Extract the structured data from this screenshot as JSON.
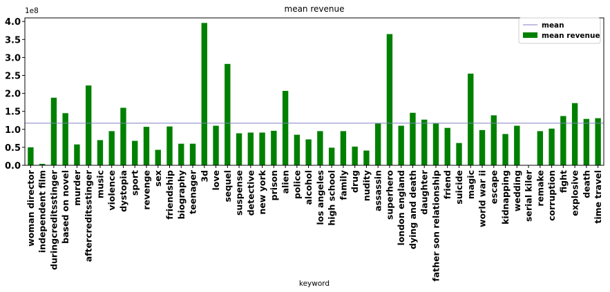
{
  "chart_data": {
    "type": "bar",
    "title": "mean revenue",
    "xlabel": "keyword",
    "ylabel": "",
    "y_offset_label": "1e8",
    "ylim": [
      0,
      4.1
    ],
    "yticks": [
      "0.0",
      "0.5",
      "1.0",
      "1.5",
      "2.0",
      "2.5",
      "3.0",
      "3.5",
      "4.0"
    ],
    "categories": [
      "woman director",
      "independent film",
      "duringcreditsstinger",
      "based on novel",
      "murder",
      "aftercreditsstinger",
      "music",
      "violence",
      "dystopia",
      "sport",
      "revenge",
      "sex",
      "friendship",
      "biography",
      "teenager",
      "3d",
      "love",
      "sequel",
      "suspense",
      "detective",
      "new york",
      "prison",
      "alien",
      "police",
      "alcohol",
      "los angeles",
      "high school",
      "family",
      "drug",
      "nudity",
      "assassin",
      "superhero",
      "london england",
      "dying and death",
      "daughter",
      "father son relationship",
      "friend",
      "suicide",
      "magic",
      "world war ii",
      "escape",
      "kidnapping",
      "wedding",
      "serial kiler",
      "remake",
      "corruption",
      "fight",
      "explosive",
      "death",
      "time travel"
    ],
    "series": [
      {
        "name": "mean revenue",
        "color": "#008000",
        "values": [
          0.5,
          0.04,
          1.88,
          1.45,
          0.58,
          2.22,
          0.7,
          0.95,
          1.6,
          0.68,
          1.07,
          0.43,
          1.08,
          0.6,
          0.6,
          3.96,
          1.1,
          2.82,
          0.89,
          0.91,
          0.91,
          0.96,
          2.07,
          0.85,
          0.72,
          0.95,
          0.49,
          0.95,
          0.52,
          0.41,
          1.16,
          3.65,
          1.1,
          1.46,
          1.27,
          1.16,
          1.04,
          0.62,
          2.55,
          0.98,
          1.39,
          0.87,
          1.1,
          0.0,
          0.95,
          1.02,
          1.37,
          1.73,
          1.29,
          1.31
        ]
      }
    ],
    "mean_line": {
      "name": "mean",
      "value": 1.17,
      "color": "#7f7fbf"
    },
    "legend_position": "top-right",
    "grid": false
  }
}
